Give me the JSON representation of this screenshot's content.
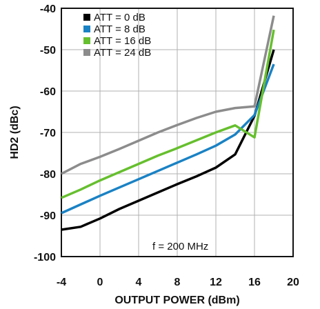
{
  "chart_data": {
    "type": "line",
    "title": "",
    "xlabel": "OUTPUT POWER (dBm)",
    "ylabel": "HD2 (dBc)",
    "xlim": [
      -4,
      20
    ],
    "ylim": [
      -100,
      -40
    ],
    "x_ticks": [
      -4,
      0,
      4,
      8,
      12,
      16,
      20
    ],
    "y_ticks": [
      -40,
      -50,
      -60,
      -70,
      -80,
      -90,
      -100
    ],
    "grid": true,
    "legend_position": "top-left",
    "annotation": "f = 200 MHz",
    "series": [
      {
        "name": "ATT = 0 dB",
        "color": "#000000",
        "x": [
          -4,
          -2,
          0,
          2,
          4,
          6,
          8,
          10,
          12,
          14,
          16,
          18
        ],
        "y": [
          -93.5,
          -92.8,
          -90.8,
          -88.5,
          -86.5,
          -84.5,
          -82.5,
          -80.6,
          -78.5,
          -75.3,
          -66.0,
          -50.0
        ]
      },
      {
        "name": "ATT = 8 dB",
        "color": "#1a82c4",
        "x": [
          -4,
          -2,
          0,
          2,
          4,
          6,
          8,
          10,
          12,
          14,
          16,
          18
        ],
        "y": [
          -89.5,
          -87.4,
          -85.3,
          -83.3,
          -81.3,
          -79.3,
          -77.3,
          -75.3,
          -73.2,
          -70.5,
          -65.8,
          -53.5
        ]
      },
      {
        "name": "ATT = 16 dB",
        "color": "#66bf2e",
        "x": [
          -4,
          -2,
          0,
          2,
          4,
          6,
          8,
          10,
          12,
          14,
          16,
          18
        ],
        "y": [
          -85.8,
          -83.8,
          -81.6,
          -79.6,
          -77.6,
          -75.6,
          -73.8,
          -71.9,
          -70.0,
          -68.3,
          -71.2,
          -45.2
        ]
      },
      {
        "name": "ATT = 24 dB",
        "color": "#8c8c8c",
        "x": [
          -4,
          -2,
          0,
          2,
          4,
          6,
          8,
          10,
          12,
          14,
          16,
          18
        ],
        "y": [
          -80.0,
          -77.6,
          -75.9,
          -74.0,
          -72.0,
          -70.0,
          -68.2,
          -66.5,
          -65.0,
          -64.1,
          -63.7,
          -41.8
        ]
      }
    ]
  }
}
